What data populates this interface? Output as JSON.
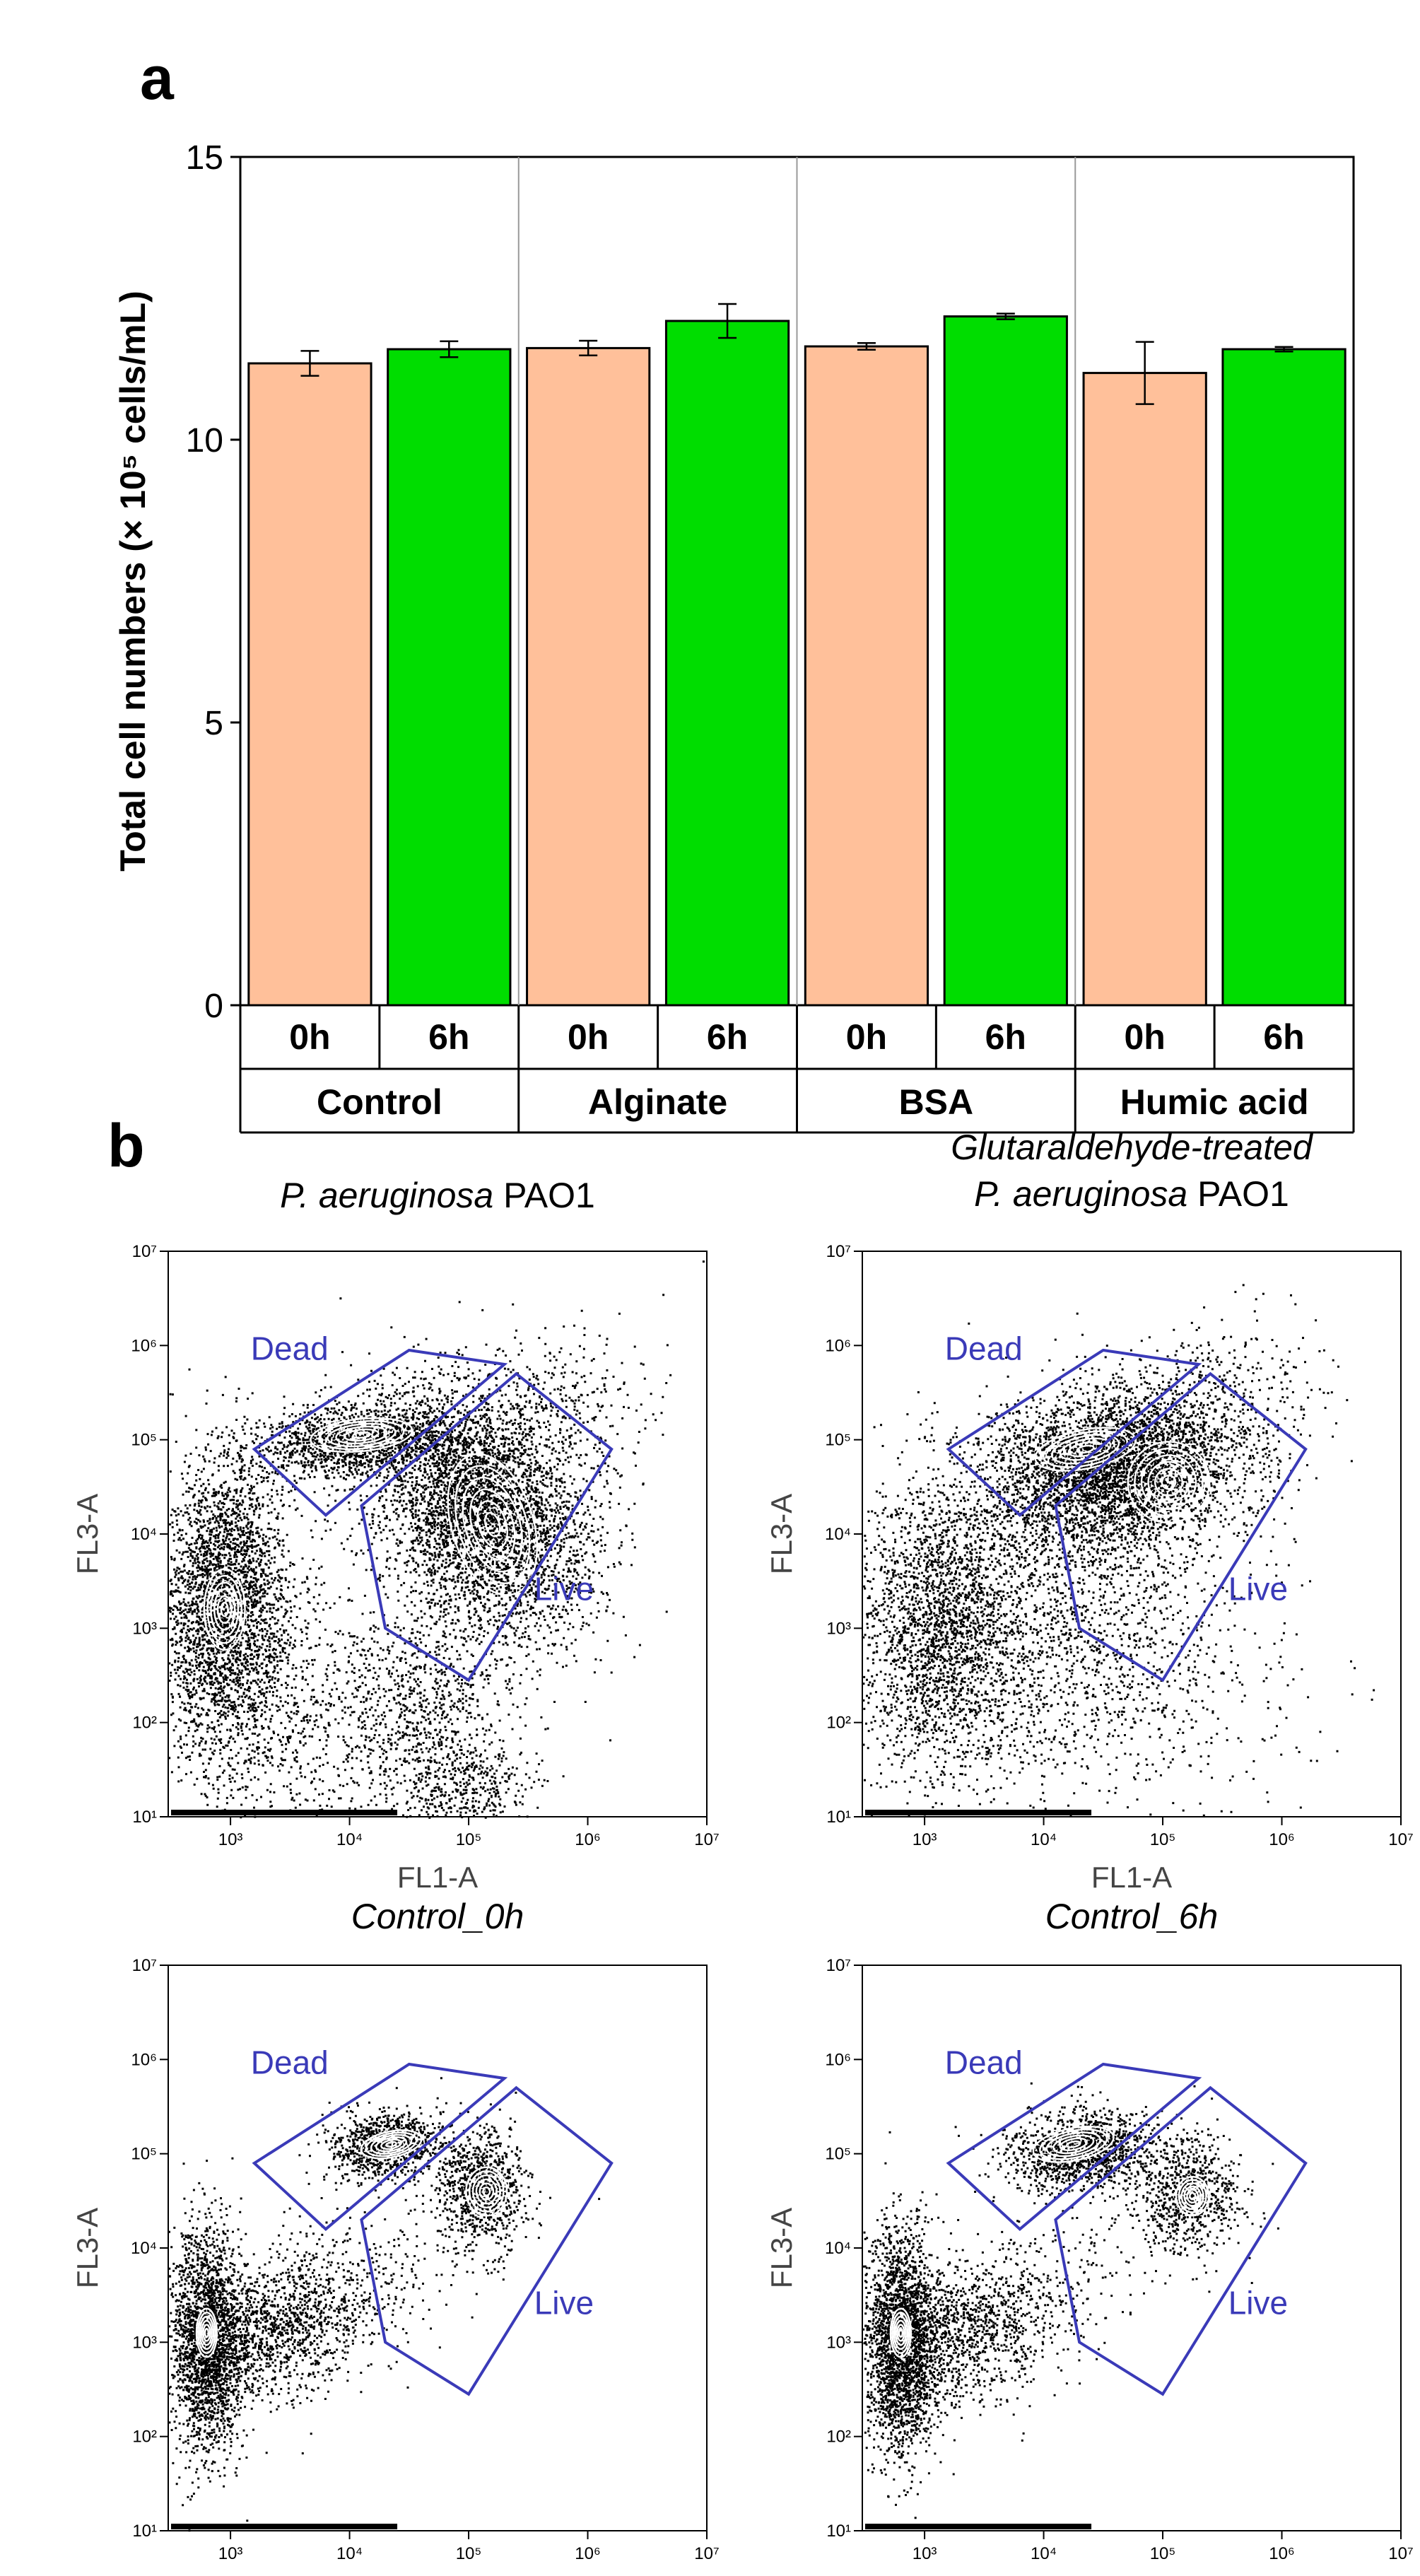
{
  "panel_a_label": "a",
  "panel_b_label": "b",
  "chart_data": [
    {
      "type": "bar",
      "title": "",
      "ylabel": "Total cell numbers (× 10⁵ cells/mL)",
      "xlabel": "",
      "ylim": [
        0,
        15
      ],
      "yticks": [
        0,
        5,
        10,
        15
      ],
      "groups": [
        "Control",
        "Alginate",
        "BSA",
        "Humic acid"
      ],
      "categories": [
        "0h",
        "6h",
        "0h",
        "6h",
        "0h",
        "6h",
        "0h",
        "6h"
      ],
      "values": [
        11.35,
        11.6,
        11.62,
        12.1,
        11.65,
        12.18,
        11.18,
        11.6
      ],
      "errors": [
        0.22,
        0.14,
        0.13,
        0.3,
        0.06,
        0.05,
        0.55,
        0.04
      ],
      "colors": [
        "#ffc09a",
        "#00dd00",
        "#ffc09a",
        "#00dd00",
        "#ffc09a",
        "#00dd00",
        "#ffc09a",
        "#00dd00"
      ],
      "grid": false
    },
    {
      "type": "scatter",
      "subtype": "flow-cytometry density plots with Dead/Live gates",
      "xlabel": "FL1-A",
      "ylabel": "FL3-A",
      "x_scale": "log",
      "y_scale": "log",
      "xlim": [
        300,
        10000000
      ],
      "ylim": [
        10,
        10000000
      ],
      "xticks": [
        "10³",
        "10⁴",
        "10⁵",
        "10⁶",
        "10⁷"
      ],
      "yticks": [
        "10¹",
        "10²",
        "10³",
        "10⁴",
        "10⁵",
        "10⁶",
        "10⁷"
      ],
      "gates": [
        "Dead",
        "Live"
      ],
      "gate_color": "#3a3ab8",
      "panels": [
        {
          "title_lines": [
            {
              "italic": "P. aeruginosa",
              "normal": " PAO1"
            }
          ],
          "sample": "pao1"
        },
        {
          "title_lines": [
            {
              "italic": "Glutaraldehyde-treated",
              "normal": ""
            },
            {
              "italic": "P. aeruginosa",
              "normal": " PAO1"
            }
          ],
          "sample": "glut"
        },
        {
          "title_lines": [
            {
              "italic": "Control_0h",
              "normal": ""
            }
          ],
          "sample": "ctrl0"
        },
        {
          "title_lines": [
            {
              "italic": "Control_6h",
              "normal": ""
            }
          ],
          "sample": "ctrl6"
        }
      ]
    }
  ]
}
